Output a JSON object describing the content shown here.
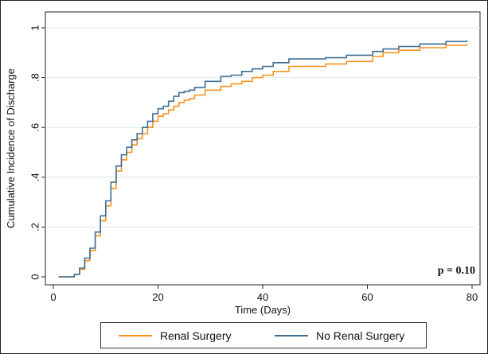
{
  "chart_data": {
    "type": "line",
    "step": true,
    "title": "",
    "xlabel": "Time (Days)",
    "ylabel": "Cumulative Incidence of Discharge",
    "xlim": [
      0,
      80
    ],
    "ylim": [
      0,
      1
    ],
    "xticks": [
      0,
      20,
      40,
      60,
      80
    ],
    "yticks": [
      0,
      0.2,
      0.4,
      0.6,
      0.8,
      1
    ],
    "xtick_labels": [
      "0",
      "20",
      "40",
      "60",
      "80"
    ],
    "ytick_labels": [
      "0",
      ".2",
      ".4",
      ".6",
      ".8",
      "1"
    ],
    "grid": "horizontal",
    "legend_position": "bottom",
    "annotation": "p = 0.10",
    "series": [
      {
        "name": "Renal Surgery",
        "color": "#F7931E",
        "x": [
          1,
          3,
          4,
          5,
          6,
          7,
          8,
          9,
          10,
          11,
          12,
          13,
          14,
          15,
          16,
          17,
          18,
          19,
          20,
          21,
          22,
          23,
          24,
          25,
          26,
          27,
          29,
          32,
          34,
          36,
          38,
          40,
          42,
          45,
          52,
          56,
          61,
          63,
          66,
          70,
          75,
          79
        ],
        "y": [
          0,
          0,
          0.01,
          0.03,
          0.065,
          0.105,
          0.165,
          0.225,
          0.285,
          0.355,
          0.425,
          0.47,
          0.5,
          0.53,
          0.555,
          0.575,
          0.6,
          0.625,
          0.645,
          0.655,
          0.67,
          0.685,
          0.7,
          0.71,
          0.715,
          0.73,
          0.75,
          0.765,
          0.775,
          0.785,
          0.8,
          0.81,
          0.825,
          0.845,
          0.855,
          0.865,
          0.885,
          0.9,
          0.91,
          0.92,
          0.93,
          0.935
        ]
      },
      {
        "name": "No Renal Surgery",
        "color": "#3E6E94",
        "x": [
          1,
          3,
          4,
          5,
          6,
          7,
          8,
          9,
          10,
          11,
          12,
          13,
          14,
          15,
          16,
          17,
          18,
          19,
          20,
          21,
          22,
          23,
          24,
          25,
          26,
          27,
          29,
          32,
          34,
          36,
          38,
          40,
          42,
          45,
          52,
          56,
          61,
          63,
          66,
          70,
          75,
          79
        ],
        "y": [
          0,
          0,
          0.01,
          0.035,
          0.075,
          0.115,
          0.18,
          0.245,
          0.305,
          0.38,
          0.445,
          0.49,
          0.52,
          0.55,
          0.575,
          0.6,
          0.625,
          0.655,
          0.675,
          0.685,
          0.705,
          0.725,
          0.74,
          0.745,
          0.75,
          0.76,
          0.785,
          0.805,
          0.81,
          0.825,
          0.835,
          0.845,
          0.86,
          0.875,
          0.88,
          0.89,
          0.905,
          0.915,
          0.925,
          0.935,
          0.945,
          0.95
        ]
      }
    ]
  }
}
